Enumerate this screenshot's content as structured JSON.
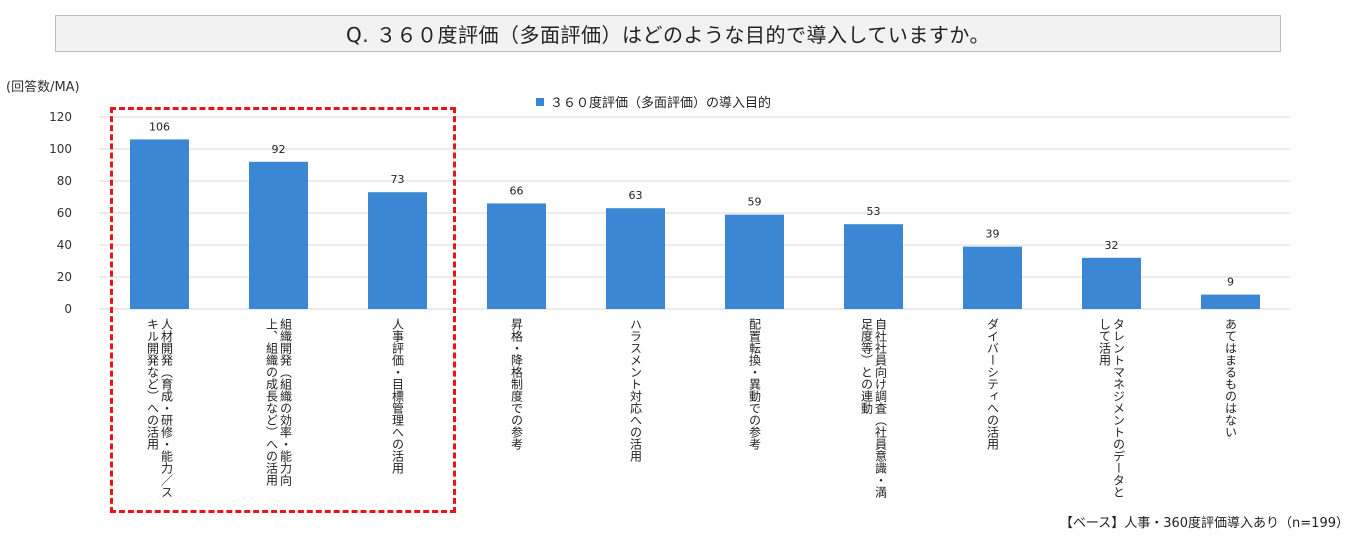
{
  "question_title": "Q. ３６０度評価（多面評価）はどのような目的で導入していますか。",
  "unit_label": "(回答数/MA)",
  "base_note": "【ベース】人事・360度評価導入あり（n=199）",
  "colors": {
    "bar": "#3b87d4",
    "highlight": "#e8141b",
    "grid": "#d9d9d9"
  },
  "chart_data": {
    "type": "bar",
    "title": "",
    "categories": [
      "人材開発（育成・研修・能力／スキル開発など）への活用",
      "組織開発（組織の効率・能力向上、組織の成長など）への活用",
      "人事評価・目標管理への活用",
      "昇格・降格制度での参考",
      "ハラスメント対応への活用",
      "配置転換・異動での参考",
      "自社社員向け調査（社員意識・満足度等）との連動",
      "ダイバーシティへの活用",
      "タレントマネジメントのデータとして活用",
      "あてはまるものはない"
    ],
    "category_display": [
      "人材開発（育成・研修・能力／ス\nキル開発など）への活用",
      "組織開発（組織の効率・能力向\n上、組織の成長など）への活用",
      "人事評価・目標管理への活用",
      "昇格・降格制度での参考",
      "ハラスメント対応への活用",
      "配置転換・異動での参考",
      "自社社員向け調査（社員意識・満\n足度等）との連動",
      "ダイバーシティへの活用",
      "タレントマネジメントのデータと\nして活用",
      "あてはまるものはない"
    ],
    "series": [
      {
        "name": "３６０度評価（多面評価）の導入目的",
        "values": [
          106,
          92,
          73,
          66,
          63,
          59,
          53,
          39,
          32,
          9
        ]
      }
    ],
    "xlabel": "",
    "ylabel": "",
    "ylim": [
      0,
      120
    ],
    "yticks": [
      0,
      20,
      40,
      60,
      80,
      100,
      120
    ],
    "grid": true,
    "legend": "top-center",
    "data_labels": true,
    "highlighted_categories": [
      0,
      1,
      2
    ]
  }
}
